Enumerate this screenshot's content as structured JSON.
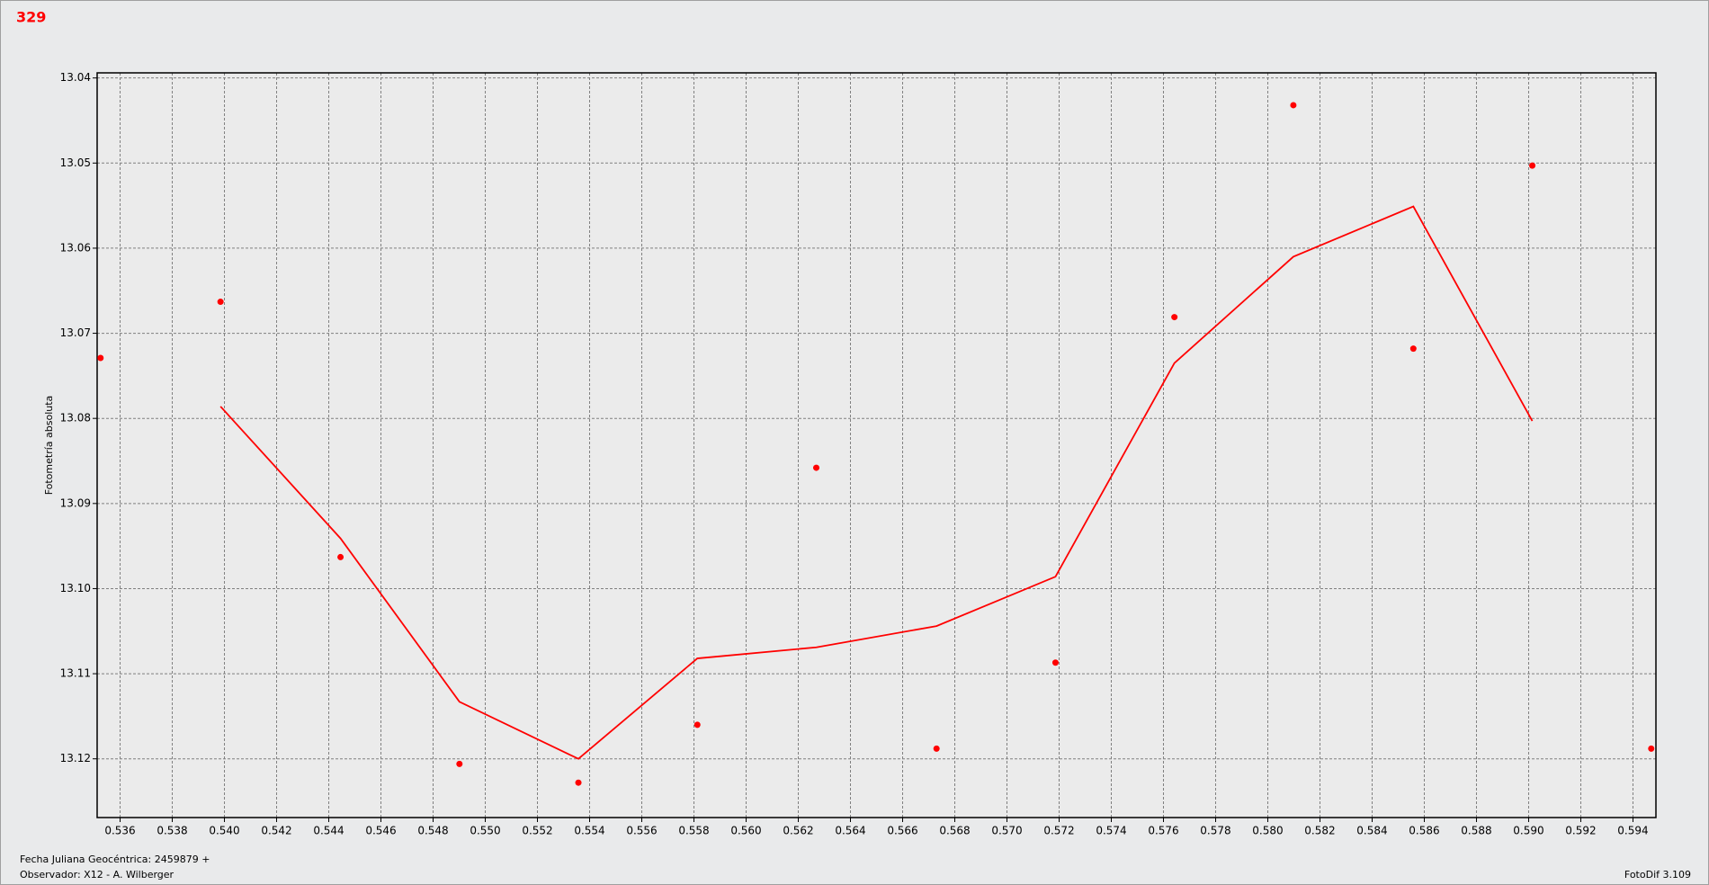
{
  "chart_data": {
    "type": "scatter",
    "title": "329",
    "y_label": "Fotometría absoluta",
    "xlim": [
      0.53512,
      0.59488
    ],
    "ylim": [
      13.0394,
      13.1269
    ],
    "y_inverted": true,
    "grid": true,
    "xticks": [
      0.536,
      0.538,
      {
        "value": 0.54,
        "label": "0.540"
      },
      0.542,
      0.544,
      0.546,
      0.548,
      {
        "value": 0.55,
        "label": "0.550"
      },
      0.552,
      0.554,
      0.556,
      0.558,
      {
        "value": 0.56,
        "label": "0.560"
      },
      0.562,
      0.564,
      0.566,
      0.568,
      {
        "value": 0.57,
        "label": "0.570"
      },
      0.572,
      0.574,
      0.576,
      0.578,
      {
        "value": 0.58,
        "label": "0.580"
      },
      0.582,
      0.584,
      0.586,
      0.588,
      {
        "value": 0.59,
        "label": "0.590"
      },
      0.592,
      0.594
    ],
    "yticks": [
      13.04,
      13.05,
      13.06,
      13.07,
      13.08,
      13.09,
      {
        "value": 13.1,
        "label": "13.10"
      },
      13.11,
      13.12
    ],
    "series": [
      {
        "type": "scatter",
        "color": "#ff0000",
        "x": [
          0.53525,
          0.53985,
          0.54445,
          0.54901,
          0.55357,
          0.55813,
          0.56269,
          0.5673,
          0.57186,
          0.57642,
          0.58098,
          0.58558,
          0.59014,
          0.5947
        ],
        "values": [
          13.0729,
          13.0663,
          13.0963,
          13.1206,
          13.1228,
          13.116,
          13.0858,
          13.1188,
          13.1087,
          13.0681,
          13.0432,
          13.0718,
          13.0503,
          13.1188
        ]
      },
      {
        "type": "line",
        "color": "#ff0000",
        "x": [
          0.53985,
          0.54445,
          0.54901,
          0.55357,
          0.55813,
          0.56269,
          0.5673,
          0.57186,
          0.57642,
          0.58098,
          0.58558,
          0.59014
        ],
        "values": [
          13.0786,
          13.0941,
          13.1133,
          13.12,
          13.1082,
          13.1069,
          13.1044,
          13.0986,
          13.0735,
          13.061,
          13.0551,
          13.0803
        ]
      }
    ]
  },
  "footer": {
    "date_label": "Fecha Juliana Geocéntrica: 2459879 +",
    "observer": "Observador: X12 - A. Wilberger",
    "software": "FotoDif 3.109"
  }
}
